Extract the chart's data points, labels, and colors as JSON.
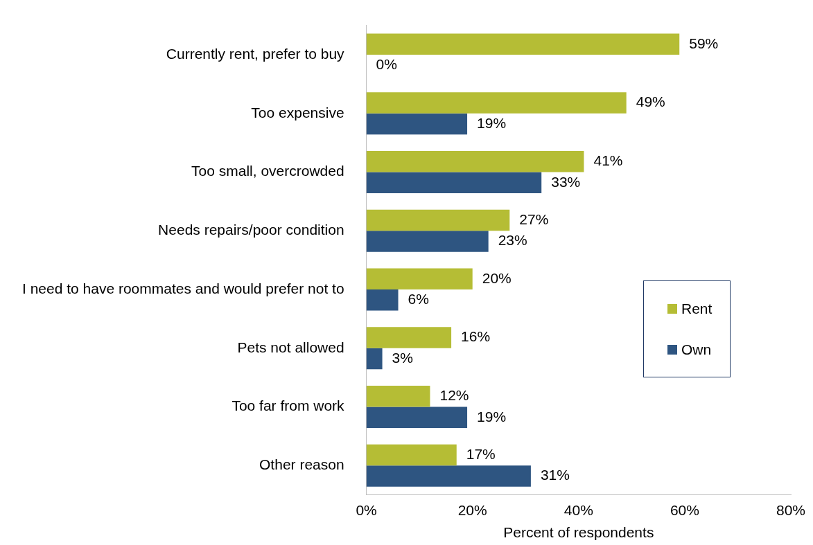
{
  "chart_data": {
    "type": "bar",
    "orientation": "horizontal",
    "xlabel": "Percent of respondents",
    "categories": [
      "Currently rent, prefer to buy",
      "Too expensive",
      "Too small, overcrowded",
      "Needs repairs/poor condition",
      "I need to have roommates and would prefer not to",
      "Pets not allowed",
      "Too far from work",
      "Other reason"
    ],
    "series": [
      {
        "name": "Rent",
        "color": "#b5bd35",
        "values": [
          59,
          49,
          41,
          27,
          20,
          16,
          12,
          17
        ],
        "value_labels": [
          "59%",
          "49%",
          "41%",
          "27%",
          "20%",
          "16%",
          "12%",
          "17%"
        ]
      },
      {
        "name": "Own",
        "color": "#2e5581",
        "values": [
          0,
          19,
          33,
          23,
          6,
          3,
          19,
          31
        ],
        "value_labels": [
          "0%",
          "19%",
          "33%",
          "23%",
          "6%",
          "3%",
          "19%",
          "31%"
        ]
      }
    ],
    "xlim": [
      0,
      80
    ],
    "xticks": [
      {
        "value": 0,
        "label": "0%"
      },
      {
        "value": 20,
        "label": "20%"
      },
      {
        "value": 40,
        "label": "40%"
      },
      {
        "value": 60,
        "label": "60%"
      },
      {
        "value": 80,
        "label": "80%"
      }
    ],
    "grid": false,
    "legend": "right"
  }
}
